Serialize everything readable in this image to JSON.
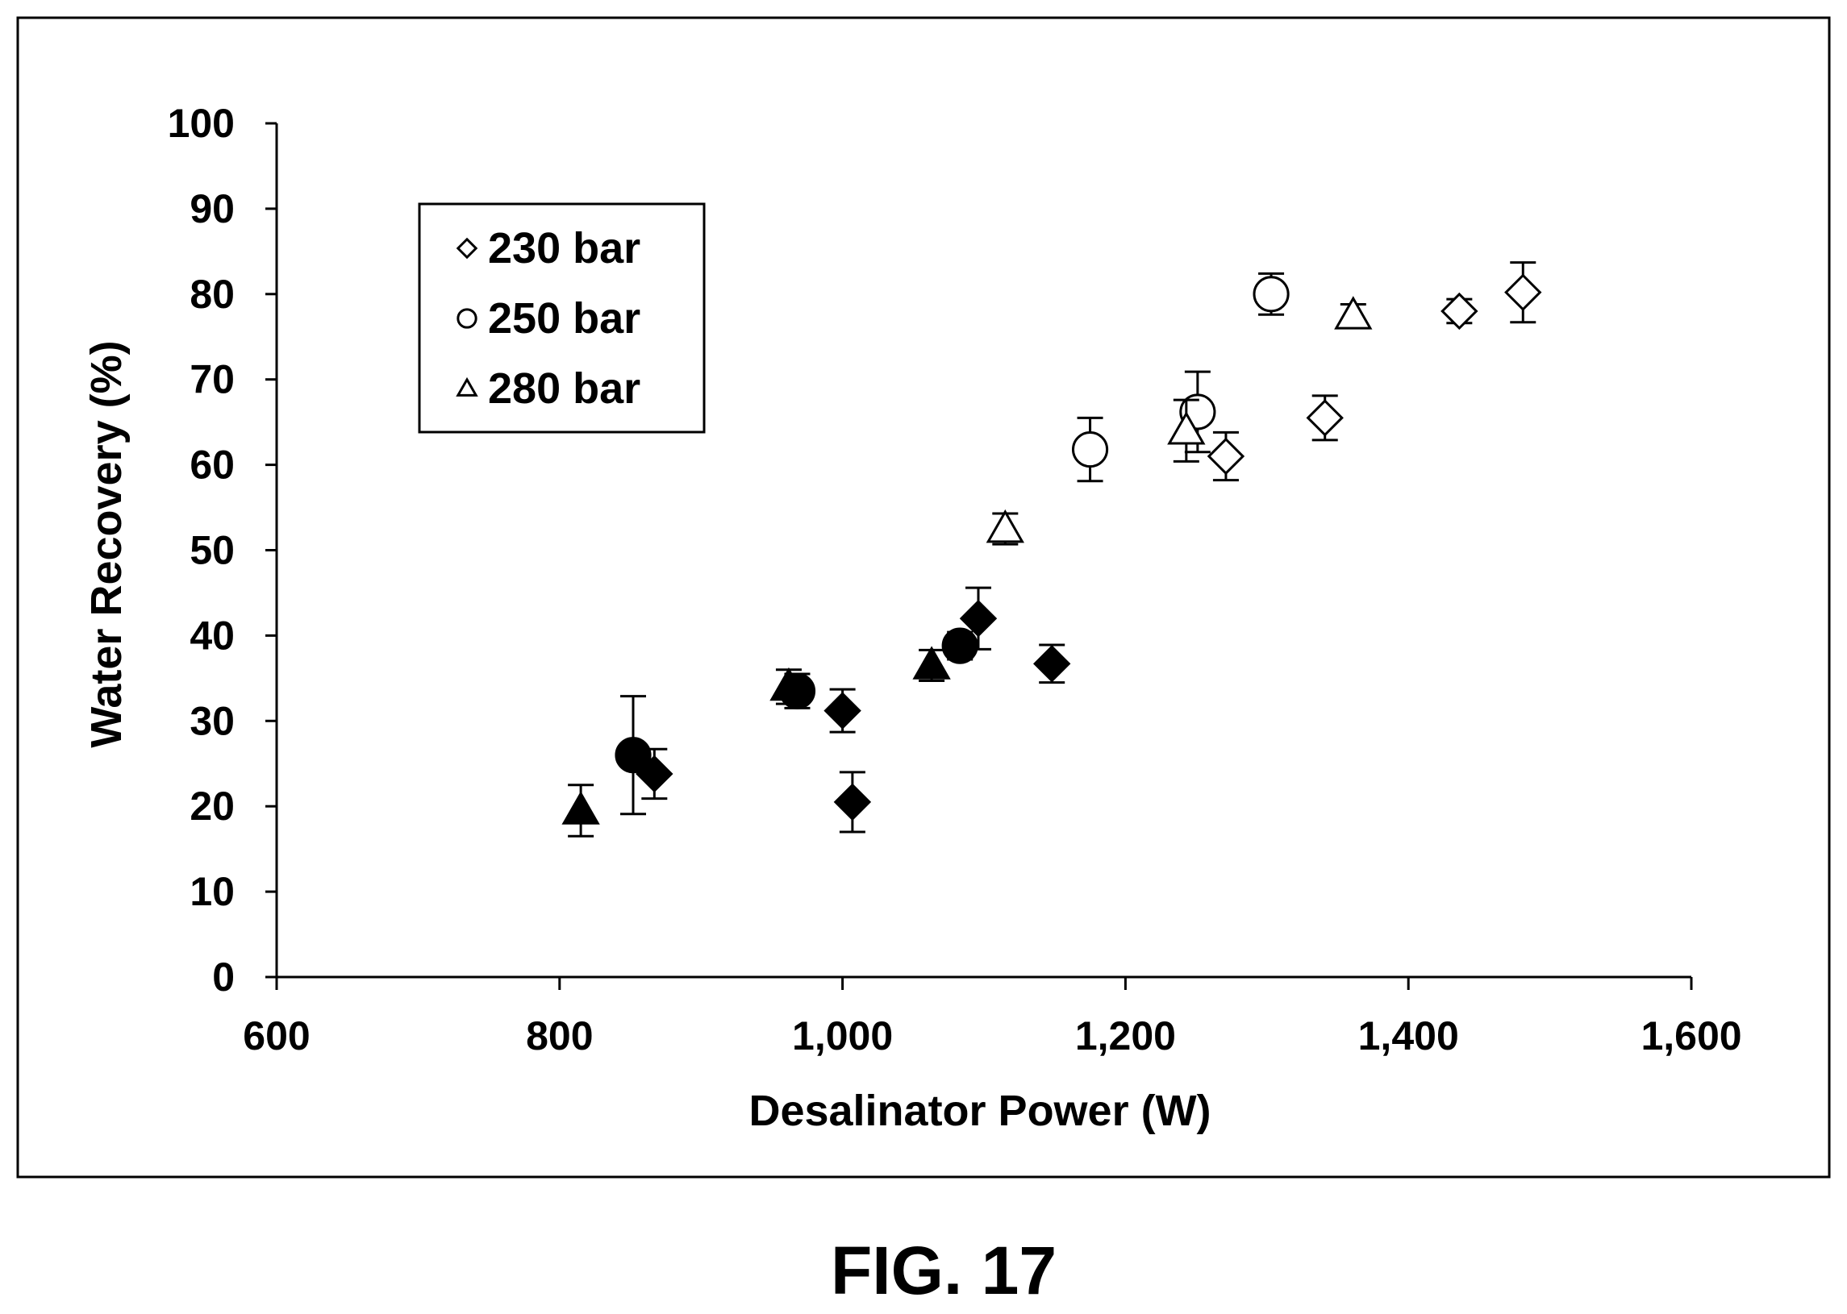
{
  "chart_data": {
    "type": "scatter",
    "xlabel": "Desalinator Power (W)",
    "ylabel": "Water Recovery (%)",
    "xlim": [
      600,
      1600
    ],
    "ylim": [
      0,
      100
    ],
    "x_ticks": [
      600,
      800,
      1000,
      1200,
      1400,
      1600
    ],
    "x_tick_labels": [
      "600",
      "800",
      "1,000",
      "1,200",
      "1,400",
      "1,600"
    ],
    "y_ticks": [
      0,
      10,
      20,
      30,
      40,
      50,
      60,
      70,
      80,
      90,
      100
    ],
    "y_tick_labels": [
      "0",
      "10",
      "20",
      "30",
      "40",
      "50",
      "60",
      "70",
      "80",
      "90",
      "100"
    ],
    "grid": false,
    "legend_position": "top-left",
    "series": [
      {
        "name": "230 bar",
        "marker": "diamond",
        "points": [
          {
            "x": 867,
            "y": 23.8,
            "err": 2.9,
            "filled": true
          },
          {
            "x": 1000,
            "y": 31.2,
            "err": 2.5,
            "filled": true
          },
          {
            "x": 1007,
            "y": 20.5,
            "err": 3.5,
            "filled": true
          },
          {
            "x": 1096,
            "y": 42.0,
            "err": 3.6,
            "filled": true
          },
          {
            "x": 1148,
            "y": 36.7,
            "err": 2.2,
            "filled": true
          },
          {
            "x": 1271,
            "y": 61.0,
            "err": 2.8,
            "filled": false
          },
          {
            "x": 1341,
            "y": 65.5,
            "err": 2.6,
            "filled": false
          },
          {
            "x": 1436,
            "y": 78.0,
            "err": 1.4,
            "filled": false
          },
          {
            "x": 1481,
            "y": 80.2,
            "err": 3.5,
            "filled": false
          }
        ]
      },
      {
        "name": "250 bar",
        "marker": "circle",
        "points": [
          {
            "x": 852,
            "y": 26.0,
            "err": 6.9,
            "filled": true
          },
          {
            "x": 968,
            "y": 33.5,
            "err": 2.0,
            "filled": true
          },
          {
            "x": 1083,
            "y": 38.8,
            "err": 1.6,
            "filled": true
          },
          {
            "x": 1175,
            "y": 61.8,
            "err": 3.7,
            "filled": false
          },
          {
            "x": 1251,
            "y": 66.2,
            "err": 4.7,
            "filled": false
          },
          {
            "x": 1303,
            "y": 80.0,
            "err": 2.4,
            "filled": false
          }
        ]
      },
      {
        "name": "280 bar",
        "marker": "triangle",
        "points": [
          {
            "x": 815,
            "y": 19.5,
            "err": 3.0,
            "filled": true
          },
          {
            "x": 962,
            "y": 34.0,
            "err": 2.0,
            "filled": true
          },
          {
            "x": 1063,
            "y": 36.5,
            "err": 1.8,
            "filled": true
          },
          {
            "x": 1115,
            "y": 52.5,
            "err": 1.8,
            "filled": false
          },
          {
            "x": 1243,
            "y": 64.0,
            "err": 3.6,
            "filled": false
          },
          {
            "x": 1361,
            "y": 77.5,
            "err": 1.3,
            "filled": false
          }
        ]
      }
    ]
  },
  "caption": "FIG. 17",
  "colors": {
    "ink": "#000000",
    "background": "#ffffff"
  }
}
